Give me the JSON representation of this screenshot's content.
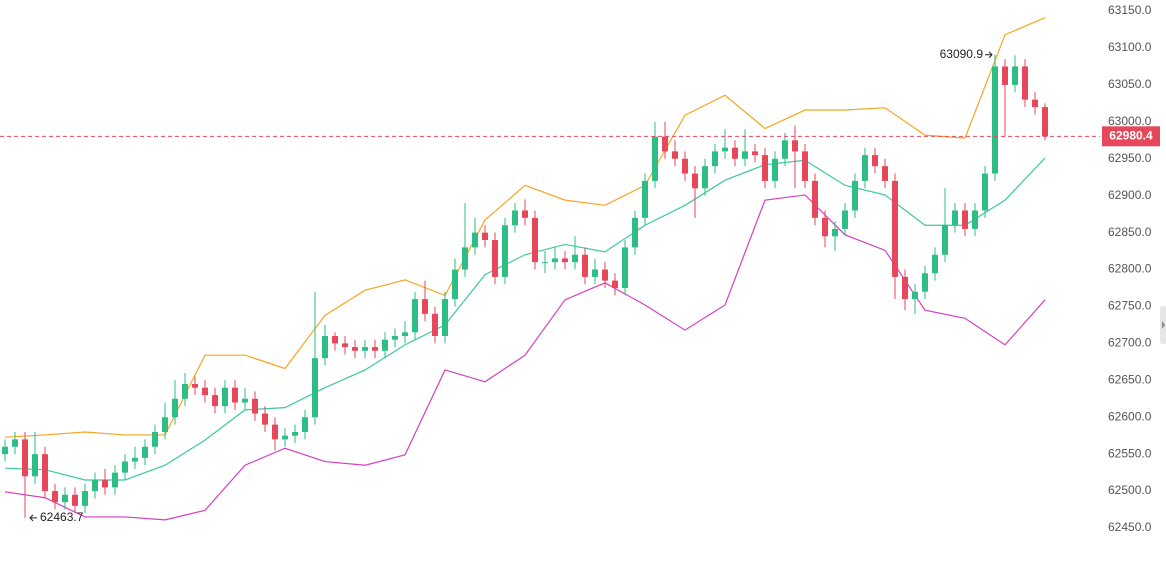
{
  "chart_data": {
    "type": "candlestick",
    "open": [
      62550,
      62560,
      62570,
      62520,
      62550,
      62500,
      62485,
      62495,
      62480,
      62500,
      62515,
      62505,
      62525,
      62540,
      62545,
      62560,
      62580,
      62600,
      62625,
      62645,
      62640,
      62630,
      62615,
      62640,
      62620,
      62625,
      62605,
      62590,
      62570,
      62575,
      62580,
      62600,
      62680,
      62710,
      62700,
      62695,
      62690,
      62695,
      62690,
      62705,
      62710,
      62715,
      62760,
      62740,
      62710,
      62760,
      62800,
      62830,
      62850,
      62840,
      62790,
      62860,
      62880,
      62870,
      62810,
      62810,
      62815,
      62810,
      62820,
      62790,
      62800,
      62785,
      62775,
      62830,
      62870,
      62920,
      62980,
      62960,
      62950,
      62930,
      62910,
      62940,
      62960,
      62965,
      62950,
      62960,
      62955,
      62920,
      62950,
      62975,
      62960,
      62920,
      62870,
      62845,
      62855,
      62880,
      62920,
      62955,
      62940,
      62920,
      62790,
      62760,
      62770,
      62795,
      62820,
      62860,
      62880,
      62855,
      62880,
      62930,
      63075,
      63050,
      63075,
      63030,
      63020
    ],
    "high": [
      62570,
      62580,
      62580,
      62580,
      62560,
      62510,
      62505,
      62505,
      62510,
      62525,
      62530,
      62535,
      62550,
      62560,
      62570,
      62590,
      62620,
      62650,
      62660,
      62655,
      62650,
      62640,
      62650,
      62650,
      62640,
      62635,
      62615,
      62600,
      62585,
      62590,
      62610,
      62770,
      62725,
      62715,
      62710,
      62705,
      62705,
      62705,
      62715,
      62720,
      62730,
      62770,
      62785,
      62750,
      62770,
      62815,
      62890,
      62870,
      62860,
      62850,
      62870,
      62890,
      62895,
      62880,
      62825,
      62830,
      62825,
      62845,
      62830,
      62815,
      62810,
      62795,
      62840,
      62880,
      62930,
      63000,
      63000,
      62975,
      62960,
      62940,
      62950,
      62970,
      62990,
      62975,
      62990,
      62970,
      62965,
      62960,
      62985,
      62995,
      62970,
      62930,
      62880,
      62865,
      62890,
      62930,
      62965,
      62965,
      62950,
      62930,
      62800,
      62780,
      62805,
      62830,
      62910,
      62890,
      62890,
      62890,
      62940,
      63090.9,
      63085,
      63090,
      63085,
      63040,
      63025
    ],
    "low": [
      62540,
      62550,
      62463.7,
      62510,
      62490,
      62475,
      62475,
      62470,
      62470,
      62490,
      62495,
      62495,
      62515,
      62530,
      62535,
      62550,
      62570,
      62590,
      62615,
      62630,
      62620,
      62605,
      62605,
      62610,
      62610,
      62595,
      62580,
      62555,
      62560,
      62565,
      62570,
      62590,
      62670,
      62690,
      62685,
      62680,
      62680,
      62680,
      62680,
      62695,
      62700,
      62705,
      62730,
      62700,
      62700,
      62750,
      62790,
      62820,
      62830,
      62780,
      62780,
      62850,
      62860,
      62800,
      62795,
      62800,
      62800,
      62800,
      62780,
      62780,
      62775,
      62765,
      62765,
      62820,
      62860,
      62910,
      62950,
      62940,
      62920,
      62870,
      62900,
      62930,
      62950,
      62940,
      62940,
      62945,
      62910,
      62910,
      62940,
      62910,
      62910,
      62860,
      62830,
      62825,
      62845,
      62870,
      62910,
      62930,
      62910,
      62760,
      62745,
      62740,
      62760,
      62785,
      62810,
      62850,
      62845,
      62845,
      62870,
      62920,
      62980,
      63040,
      63020,
      63010,
      62975
    ],
    "close": [
      62560,
      62570,
      62520,
      62550,
      62500,
      62485,
      62495,
      62480,
      62500,
      62515,
      62505,
      62525,
      62540,
      62545,
      62560,
      62580,
      62600,
      62625,
      62645,
      62640,
      62630,
      62615,
      62640,
      62620,
      62625,
      62605,
      62590,
      62570,
      62575,
      62580,
      62600,
      62680,
      62710,
      62700,
      62695,
      62690,
      62695,
      62690,
      62705,
      62710,
      62715,
      62760,
      62740,
      62710,
      62760,
      62800,
      62830,
      62850,
      62840,
      62790,
      62860,
      62880,
      62870,
      62810,
      62810,
      62815,
      62810,
      62820,
      62790,
      62800,
      62785,
      62775,
      62830,
      62870,
      62920,
      62980,
      62960,
      62950,
      62930,
      62910,
      62940,
      62960,
      62965,
      62950,
      62960,
      62955,
      62920,
      62950,
      62975,
      62960,
      62920,
      62870,
      62845,
      62855,
      62880,
      62920,
      62955,
      62940,
      62920,
      62790,
      62760,
      62770,
      62795,
      62820,
      62860,
      62880,
      62855,
      62880,
      62930,
      63075,
      63050,
      63075,
      63030,
      63020,
      62980.4
    ],
    "up_color": "#2ebd85",
    "down_color": "#e5485a",
    "bands": {
      "x": [
        0,
        4,
        8,
        12,
        16,
        20,
        24,
        28,
        32,
        36,
        40,
        44,
        48,
        52,
        56,
        60,
        64,
        68,
        72,
        76,
        80,
        84,
        88,
        92,
        96,
        100,
        104
      ],
      "series": [
        {
          "color": "#f5a623",
          "values": [
            62573,
            62576,
            62580,
            62576,
            62576,
            62684,
            62684,
            62666,
            62738,
            62772,
            62786,
            62765,
            62867,
            62914,
            62894,
            62887,
            62914,
            63009,
            63036,
            62991,
            63016,
            63016,
            63019,
            62982,
            62978,
            63118,
            63141
          ]
        },
        {
          "color": "#3cc8a0",
          "values": [
            62531,
            62529,
            62515,
            62515,
            62535,
            62569,
            62610,
            62613,
            62640,
            62664,
            62698,
            62725,
            62793,
            62820,
            62834,
            62824,
            62860,
            62887,
            62921,
            62942,
            62948,
            62914,
            62901,
            62860,
            62860,
            62894,
            62951
          ]
        },
        {
          "color": "#d63fbf",
          "values": [
            62499,
            62491,
            62465,
            62465,
            62461,
            62474,
            62535,
            62558,
            62540,
            62535,
            62549,
            62664,
            62648,
            62684,
            62759,
            62782,
            62752,
            62718,
            62752,
            62894,
            62901,
            62847,
            62826,
            62745,
            62734,
            62698,
            62759
          ]
        }
      ]
    },
    "ylim": [
      62385,
      63165
    ],
    "yticks": [
      {
        "value": 62450,
        "label": "62450.0"
      },
      {
        "value": 62500,
        "label": "62500.0"
      },
      {
        "value": 62550,
        "label": "62550.0"
      },
      {
        "value": 62600,
        "label": "62600.0"
      },
      {
        "value": 62650,
        "label": "62650.0"
      },
      {
        "value": 62700,
        "label": "62700.0"
      },
      {
        "value": 62750,
        "label": "62750.0"
      },
      {
        "value": 62800,
        "label": "62800.0"
      },
      {
        "value": 62850,
        "label": "62850.0"
      },
      {
        "value": 62900,
        "label": "62900.0"
      },
      {
        "value": 62950,
        "label": "62950.0"
      },
      {
        "value": 63000,
        "label": "63000.0"
      },
      {
        "value": 63050,
        "label": "63050.0"
      },
      {
        "value": 63100,
        "label": "63100.0"
      },
      {
        "value": 63150,
        "label": "63150.0"
      }
    ]
  }
}
